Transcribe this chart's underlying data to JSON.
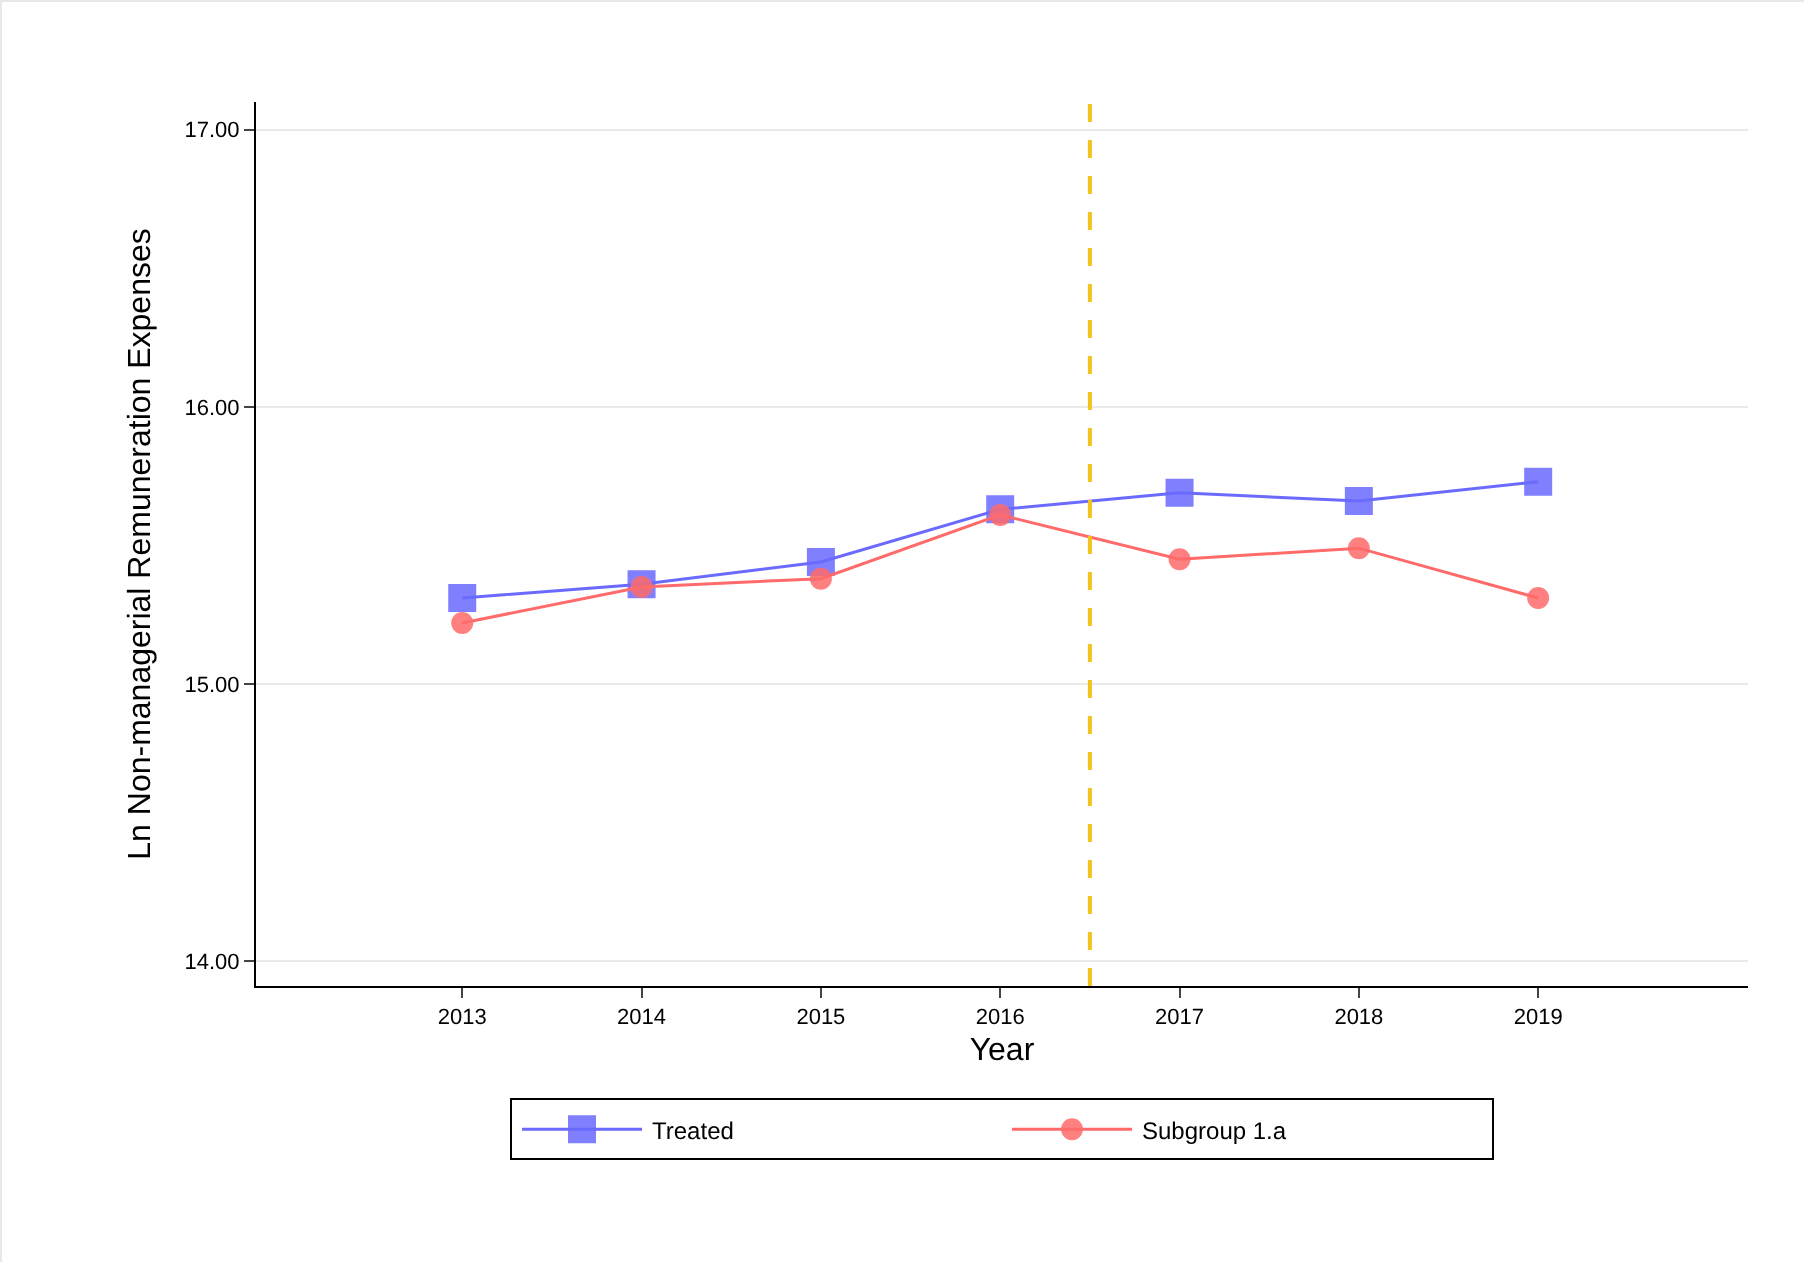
{
  "chart_data": {
    "type": "line",
    "xlabel": "Year",
    "ylabel": "Ln Non-managerial Remuneration Expenses",
    "x": [
      2013,
      2014,
      2015,
      2016,
      2017,
      2018,
      2019
    ],
    "series": [
      {
        "name": "Treated",
        "color": "#6a6aff",
        "marker": "square",
        "values": [
          15.31,
          15.36,
          15.44,
          15.63,
          15.69,
          15.66,
          15.73
        ]
      },
      {
        "name": "Subgroup 1.a",
        "color": "#ff6a6a",
        "marker": "circle",
        "values": [
          15.22,
          15.35,
          15.38,
          15.61,
          15.45,
          15.49,
          15.31
        ]
      }
    ],
    "xlim": [
      2011.85,
      2020.17
    ],
    "xticks": [
      2013,
      2014,
      2015,
      2016,
      2017,
      2018,
      2019
    ],
    "ylim": [
      13.91,
      17.1
    ],
    "yticks": [
      {
        "value": 14,
        "label": "14.00"
      },
      {
        "value": 15,
        "label": "15.00"
      },
      {
        "value": 16,
        "label": "16.00"
      },
      {
        "value": 17,
        "label": "17.00"
      }
    ],
    "ref_lines": [
      {
        "axis": "x",
        "value": 2016.5,
        "color": "#f0c419",
        "line_style": "dashed"
      }
    ],
    "grid": "y",
    "legend": "bottom",
    "line_style": "solid"
  }
}
